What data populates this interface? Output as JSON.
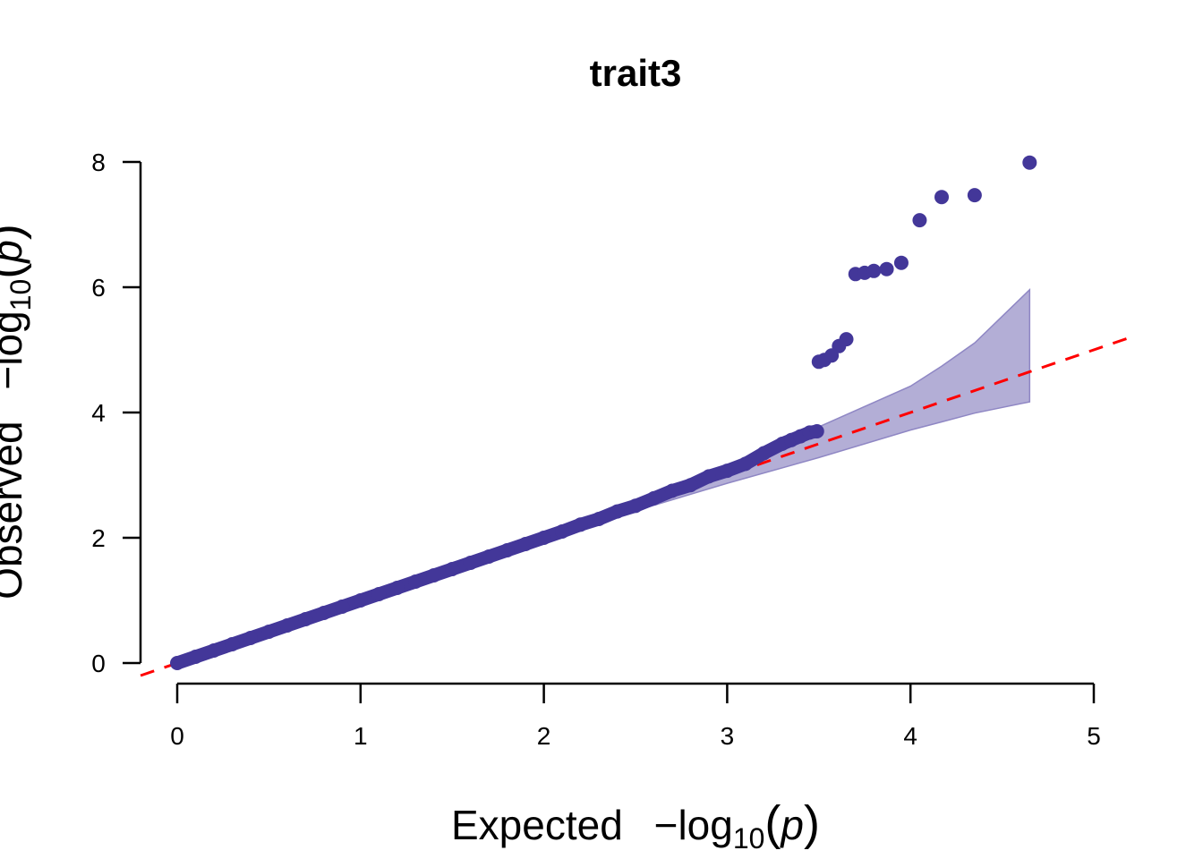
{
  "chart_data": {
    "type": "scatter",
    "title": "trait3",
    "xlabel": {
      "prefix": "Expected",
      "minus_log": "−log",
      "sub": "10",
      "open": "(",
      "var": "p",
      "close": ")"
    },
    "ylabel": {
      "prefix": "Observed",
      "minus_log": "−log",
      "sub": "10",
      "open": "(",
      "var": "p",
      "close": ")"
    },
    "xlim": [
      0,
      5
    ],
    "ylim": [
      0,
      8
    ],
    "xticks": [
      "0",
      "1",
      "2",
      "3",
      "4",
      "5"
    ],
    "yticks": [
      "0",
      "2",
      "4",
      "6",
      "8"
    ],
    "grid": false,
    "colors": {
      "points": "#433799",
      "band": "#b3aed6",
      "band_edge": "#8f87c4",
      "reference_line": "#ff0000"
    },
    "reference_line": {
      "slope": 1,
      "intercept": 0,
      "style": "dashed"
    },
    "confidence_band": {
      "x": [
        0.0,
        0.5,
        1.0,
        1.5,
        2.0,
        2.5,
        3.0,
        3.5,
        4.0,
        4.17,
        4.35,
        4.65
      ],
      "upper": [
        0.02,
        0.52,
        1.03,
        1.54,
        2.06,
        2.58,
        3.15,
        3.77,
        4.42,
        4.74,
        5.11,
        5.96
      ],
      "lower": [
        0.0,
        0.48,
        0.97,
        1.46,
        1.94,
        2.43,
        2.87,
        3.28,
        3.72,
        3.85,
        3.99,
        4.17
      ]
    },
    "points": [
      [
        0.0,
        0.0
      ],
      [
        0.1,
        0.1
      ],
      [
        0.2,
        0.2
      ],
      [
        0.3,
        0.3
      ],
      [
        0.4,
        0.4
      ],
      [
        0.5,
        0.5
      ],
      [
        0.6,
        0.6
      ],
      [
        0.7,
        0.7
      ],
      [
        0.8,
        0.8
      ],
      [
        0.9,
        0.9
      ],
      [
        1.0,
        1.0
      ],
      [
        1.1,
        1.1
      ],
      [
        1.2,
        1.2
      ],
      [
        1.3,
        1.3
      ],
      [
        1.4,
        1.4
      ],
      [
        1.5,
        1.5
      ],
      [
        1.6,
        1.6
      ],
      [
        1.7,
        1.7
      ],
      [
        1.8,
        1.8
      ],
      [
        1.9,
        1.9
      ],
      [
        2.0,
        2.0
      ],
      [
        2.1,
        2.1
      ],
      [
        2.2,
        2.21
      ],
      [
        2.3,
        2.3
      ],
      [
        2.4,
        2.42
      ],
      [
        2.5,
        2.51
      ],
      [
        2.6,
        2.63
      ],
      [
        2.7,
        2.75
      ],
      [
        2.8,
        2.84
      ],
      [
        2.9,
        2.98
      ],
      [
        3.0,
        3.07
      ],
      [
        3.1,
        3.18
      ],
      [
        3.2,
        3.35
      ],
      [
        3.3,
        3.5
      ],
      [
        3.35,
        3.56
      ],
      [
        3.4,
        3.62
      ],
      [
        3.45,
        3.68
      ],
      [
        3.49,
        3.7
      ],
      [
        3.5,
        4.81
      ],
      [
        3.53,
        4.84
      ],
      [
        3.57,
        4.91
      ],
      [
        3.61,
        5.06
      ],
      [
        3.65,
        5.17
      ],
      [
        3.7,
        6.21
      ],
      [
        3.75,
        6.23
      ],
      [
        3.8,
        6.26
      ],
      [
        3.87,
        6.29
      ],
      [
        3.95,
        6.39
      ],
      [
        4.05,
        7.07
      ],
      [
        4.17,
        7.44
      ],
      [
        4.35,
        7.47
      ],
      [
        4.65,
        7.99
      ]
    ]
  }
}
